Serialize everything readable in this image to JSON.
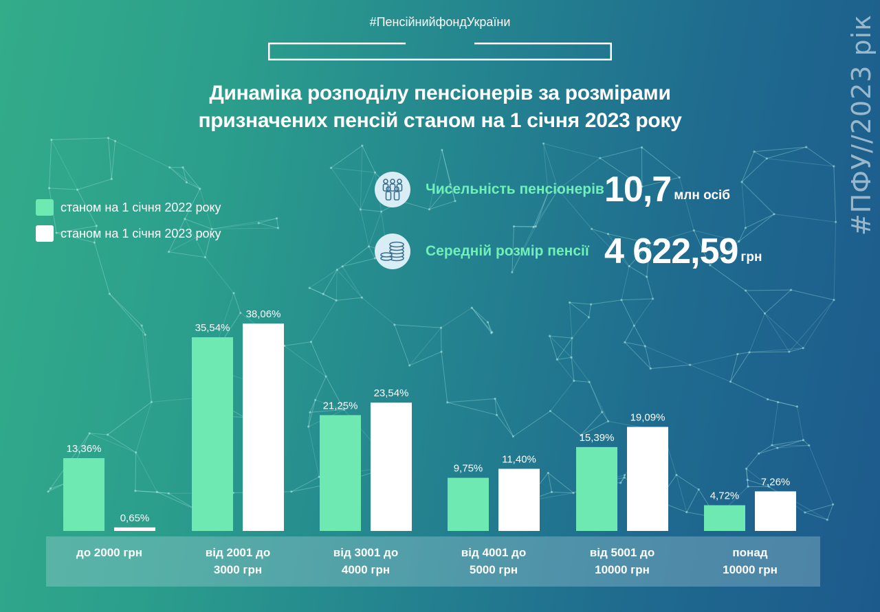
{
  "header": {
    "hashtag": "#ПенсійнийфондУкраїни",
    "title_line1": "Динаміка розподілу пенсіонерів за розмірами",
    "title_line2": "призначених пенсій станом на 1 січня 2023 року",
    "side_tag": "#ПФУ//2023 рік"
  },
  "stats": [
    {
      "icon": "people-group-icon",
      "label": "Чисельність пенсіонерів",
      "value": "10,7",
      "unit": "млн осіб"
    },
    {
      "icon": "coins-icon",
      "label": "Середній розмір пенсії",
      "value": "4 622,59",
      "unit": "грн"
    }
  ],
  "colors": {
    "series_2022": "#6ee9b1",
    "series_2023": "#ffffff",
    "stat_label": "#6ff0b8"
  },
  "chart_data": {
    "type": "bar",
    "categories": [
      [
        "до 2000 грн"
      ],
      [
        "від 2001 до",
        "3000 грн"
      ],
      [
        "від 3001 до",
        "4000 грн"
      ],
      [
        "від 4001 до",
        "5000 грн"
      ],
      [
        "від 5001 до",
        "10000 грн"
      ],
      [
        "понад",
        "10000 грн"
      ]
    ],
    "series": [
      {
        "name": "станом на 1 січня 2022 року",
        "values": [
          13.36,
          35.54,
          21.25,
          9.75,
          15.39,
          4.72
        ],
        "labels": [
          "13,36%",
          "35,54%",
          "21,25%",
          "9,75%",
          "15,39%",
          "4,72%"
        ]
      },
      {
        "name": "станом на 1 січня 2023 року",
        "values": [
          0.65,
          38.06,
          23.54,
          11.4,
          19.09,
          7.26
        ],
        "labels": [
          "0,65%",
          "38,06%",
          "23,54%",
          "11,40%",
          "19,09%",
          "7,26%"
        ]
      }
    ],
    "ylim": [
      0,
      40
    ],
    "legend_position": "top-left",
    "grid": false
  }
}
